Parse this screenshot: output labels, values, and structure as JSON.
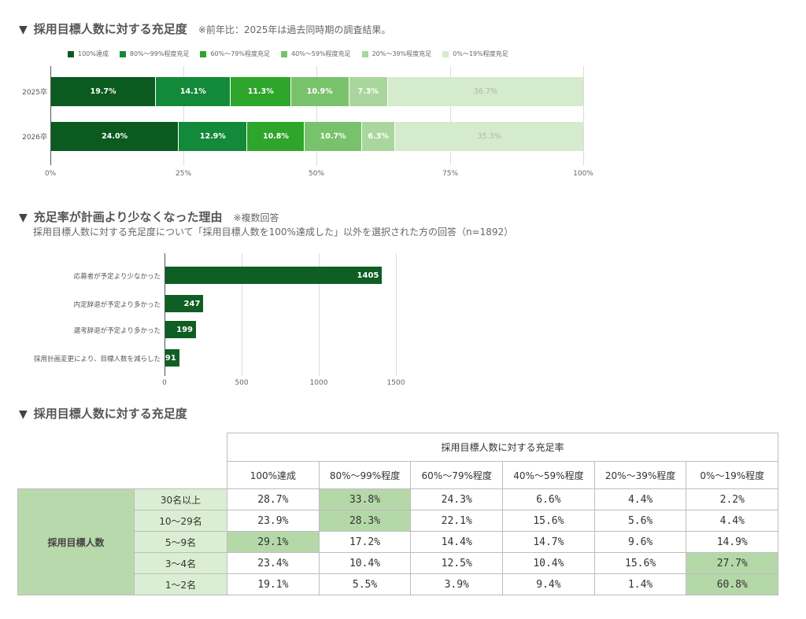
{
  "section1": {
    "marker": "▼",
    "title": "採用目標人数に対する充足度",
    "note": "※前年比：2025年は過去同時期の調査結果。"
  },
  "section2": {
    "marker": "▼",
    "title": "充足率が計画より少なくなった理由",
    "note": "※複数回答",
    "subtitle": "採用目標人数に対する充足度について「採用目標人数を100%達成した」以外を選択された方の回答（n=1892）"
  },
  "section3": {
    "marker": "▼",
    "title": "採用目標人数に対する充足度"
  },
  "colors": {
    "c100": "#0b5a1f",
    "c80": "#13893a",
    "c60": "#2ea52b",
    "c40": "#79c26c",
    "c20": "#a9d69c",
    "c0": "#d4ebcc",
    "hbar": "#0f5e23",
    "table_highlight": "#b5d8a9",
    "table_group": "#b7d9ab",
    "table_row_head": "#daeed3"
  },
  "chart_data": [
    {
      "type": "bar",
      "orientation": "horizontal",
      "stacked": true,
      "title": "採用目標人数に対する充足度",
      "categories": [
        "2025卒",
        "2026卒"
      ],
      "series": [
        {
          "name": "100%達成",
          "values": [
            19.7,
            24.0
          ]
        },
        {
          "name": "80%～99%程度充足",
          "values": [
            14.1,
            12.9
          ]
        },
        {
          "name": "60%～79%程度充足",
          "values": [
            11.3,
            10.8
          ]
        },
        {
          "name": "40%～59%程度充足",
          "values": [
            10.9,
            10.7
          ]
        },
        {
          "name": "20%～39%程度充足",
          "values": [
            7.3,
            6.3
          ]
        },
        {
          "name": "0%～19%程度充足",
          "values": [
            36.7,
            35.3
          ]
        }
      ],
      "labels": [
        [
          "19.7%",
          "14.1%",
          "11.3%",
          "10.9%",
          "7.3%",
          "36.7%"
        ],
        [
          "24.0%",
          "12.9%",
          "10.8%",
          "10.7%",
          "6.3%",
          "35.3%"
        ]
      ],
      "xticks": [
        "0%",
        "25%",
        "50%",
        "75%",
        "100%"
      ],
      "xlim": [
        0,
        100
      ],
      "grid": true,
      "legend_position": "top"
    },
    {
      "type": "bar",
      "orientation": "horizontal",
      "title": "充足率が計画より少なくなった理由",
      "categories": [
        "応募者が予定より少なかった",
        "内定辞退が予定より多かった",
        "選考辞退が予定より多かった",
        "採用計画変更により、目標人数を減らした"
      ],
      "values": [
        1405,
        247,
        199,
        91
      ],
      "labels": [
        "1405",
        "247",
        "199",
        "91"
      ],
      "xticks": [
        "0",
        "500",
        "1000",
        "1500"
      ],
      "xlim": [
        0,
        1500
      ],
      "grid": true
    },
    {
      "type": "table",
      "title": "採用目標人数に対する充足度",
      "group_header": "採用目標人数に対する充足率",
      "row_group": "採用目標人数",
      "columns": [
        "100%達成",
        "80%～99%程度",
        "60%～79%程度",
        "40%～59%程度",
        "20%～39%程度",
        "0%～19%程度"
      ],
      "rows": [
        {
          "label": "30名以上",
          "values": [
            "28.7%",
            "33.8%",
            "24.3%",
            "6.6%",
            "4.4%",
            "2.2%"
          ],
          "highlight": [
            false,
            true,
            false,
            false,
            false,
            false
          ]
        },
        {
          "label": "10～29名",
          "values": [
            "23.9%",
            "28.3%",
            "22.1%",
            "15.6%",
            "5.6%",
            "4.4%"
          ],
          "highlight": [
            false,
            true,
            false,
            false,
            false,
            false
          ]
        },
        {
          "label": "5～9名",
          "values": [
            "29.1%",
            "17.2%",
            "14.4%",
            "14.7%",
            "9.6%",
            "14.9%"
          ],
          "highlight": [
            true,
            false,
            false,
            false,
            false,
            false
          ]
        },
        {
          "label": "3～4名",
          "values": [
            "23.4%",
            "10.4%",
            "12.5%",
            "10.4%",
            "15.6%",
            "27.7%"
          ],
          "highlight": [
            false,
            false,
            false,
            false,
            false,
            true
          ]
        },
        {
          "label": "1～2名",
          "values": [
            "19.1%",
            "5.5%",
            "3.9%",
            "9.4%",
            "1.4%",
            "60.8%"
          ],
          "highlight": [
            false,
            false,
            false,
            false,
            false,
            true
          ]
        }
      ]
    }
  ]
}
